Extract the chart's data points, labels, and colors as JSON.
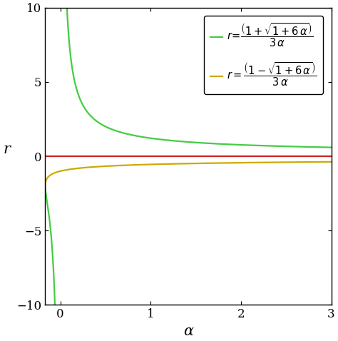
{
  "xlim": [
    -0.17,
    3.0
  ],
  "ylim": [
    -10,
    10
  ],
  "xlabel": "α",
  "ylabel": "r",
  "xticks": [
    0,
    1,
    2,
    3
  ],
  "yticks": [
    -10,
    -5,
    0,
    5,
    10
  ],
  "green_color": "#44cc44",
  "gold_color": "#ccaa00",
  "red_color": "#cc2222",
  "line_width": 1.6,
  "figsize": [
    4.74,
    4.78
  ],
  "dpi": 100,
  "bg_color": "#ffffff"
}
